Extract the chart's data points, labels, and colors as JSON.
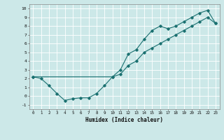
{
  "title": "",
  "xlabel": "Humidex (Indice chaleur)",
  "bg_color": "#cce8e8",
  "line_color": "#1a7070",
  "grid_color": "#ffffff",
  "xlim": [
    -0.5,
    23.5
  ],
  "ylim": [
    -1.5,
    10.5
  ],
  "xticks": [
    0,
    1,
    2,
    3,
    4,
    5,
    6,
    7,
    8,
    9,
    10,
    11,
    12,
    13,
    14,
    15,
    16,
    17,
    18,
    19,
    20,
    21,
    22,
    23
  ],
  "yticks": [
    -1,
    0,
    1,
    2,
    3,
    4,
    5,
    6,
    7,
    8,
    9,
    10
  ],
  "curve1_x": [
    0,
    1,
    2,
    3,
    4,
    5,
    6,
    7,
    8,
    9,
    10,
    11,
    12,
    13,
    14,
    15,
    16,
    17,
    18,
    19,
    20,
    21,
    22,
    23
  ],
  "curve1_y": [
    2.2,
    2.0,
    1.2,
    0.3,
    -0.5,
    -0.3,
    -0.2,
    -0.2,
    0.3,
    1.2,
    2.2,
    3.0,
    4.8,
    5.3,
    6.5,
    7.5,
    8.0,
    7.7,
    8.0,
    8.5,
    9.0,
    9.5,
    9.8,
    8.3
  ],
  "curve2_x": [
    0,
    10,
    11,
    12,
    13,
    14,
    15,
    16,
    17,
    18,
    19,
    20,
    21,
    22,
    23
  ],
  "curve2_y": [
    2.2,
    2.2,
    2.5,
    3.5,
    4.0,
    5.0,
    5.5,
    6.0,
    6.5,
    7.0,
    7.5,
    8.0,
    8.5,
    9.0,
    8.3
  ]
}
